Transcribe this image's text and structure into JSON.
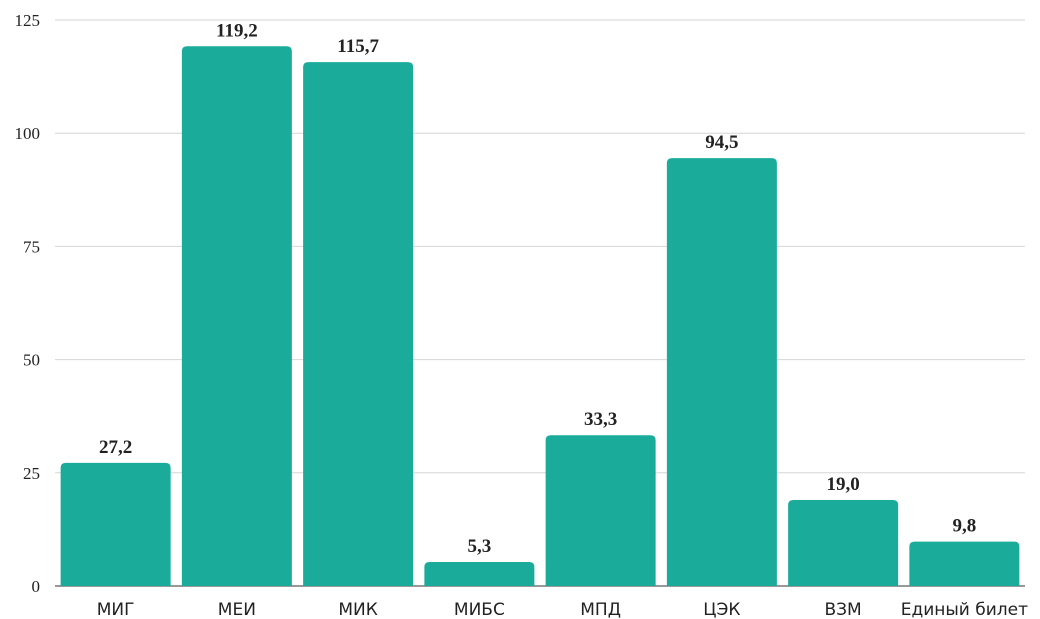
{
  "chart_data": {
    "type": "bar",
    "categories": [
      "МИГ",
      "МЕИ",
      "МИК",
      "МИБС",
      "МПД",
      "ЦЭК",
      "ВЗМ",
      "Единый билет"
    ],
    "values": [
      27.2,
      119.2,
      115.7,
      5.3,
      33.3,
      94.5,
      19.0,
      9.8
    ],
    "data_labels": [
      "27,2",
      "119,2",
      "115,7",
      "5,3",
      "33,3",
      "94,5",
      "19,0",
      "9,8"
    ],
    "yticks": [
      0,
      25,
      50,
      75,
      100,
      125
    ],
    "ylim": [
      0,
      125
    ],
    "grid": true,
    "legend": "none",
    "bar_color": "#1aab9b",
    "title": "",
    "xlabel": "",
    "ylabel": ""
  }
}
